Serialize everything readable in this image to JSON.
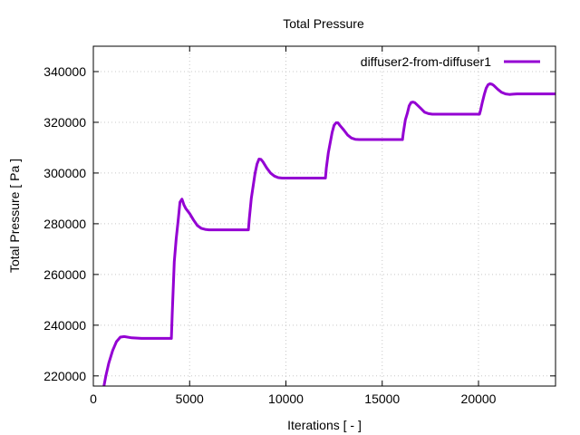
{
  "chart_data": {
    "type": "line",
    "title": "Total Pressure",
    "xlabel": "Iterations [ - ]",
    "ylabel": "Total Pressure [ Pa ]",
    "xlim": [
      0,
      24000
    ],
    "ylim": [
      216000,
      350000
    ],
    "x_ticks": [
      0,
      5000,
      10000,
      15000,
      20000
    ],
    "y_ticks": [
      220000,
      240000,
      260000,
      280000,
      300000,
      320000,
      340000
    ],
    "grid": true,
    "legend_position": "top-right",
    "series": [
      {
        "name": "diffuser2-from-diffuser1",
        "color": "#9400d3",
        "x": [
          550,
          650,
          800,
          1000,
          1200,
          1400,
          1600,
          2000,
          2500,
          3000,
          3500,
          4050,
          4100,
          4150,
          4200,
          4300,
          4400,
          4500,
          4600,
          4700,
          4800,
          5000,
          5200,
          5400,
          5600,
          5800,
          6000,
          6500,
          7000,
          7500,
          8050,
          8100,
          8200,
          8300,
          8400,
          8500,
          8600,
          8700,
          8800,
          9000,
          9200,
          9400,
          9600,
          9800,
          10000,
          10500,
          11000,
          11500,
          12050,
          12100,
          12200,
          12300,
          12400,
          12500,
          12600,
          12700,
          12800,
          13000,
          13200,
          13400,
          13600,
          13800,
          14000,
          14500,
          15000,
          15500,
          16050,
          16100,
          16200,
          16300,
          16400,
          16500,
          16600,
          16700,
          16800,
          17000,
          17200,
          17400,
          17600,
          17800,
          18000,
          18500,
          19000,
          19500,
          20050,
          20100,
          20200,
          20300,
          20400,
          20500,
          20600,
          20700,
          20800,
          21000,
          21200,
          21400,
          21600,
          21800,
          22000,
          22500,
          23000,
          23500,
          24000
        ],
        "values": [
          216000,
          220000,
          225000,
          230000,
          233500,
          235300,
          235500,
          235000,
          234800,
          234800,
          234800,
          234800,
          245000,
          255000,
          265000,
          274000,
          281000,
          288500,
          289700,
          287500,
          286000,
          284000,
          281500,
          279300,
          278200,
          277800,
          277600,
          277600,
          277600,
          277600,
          277600,
          282000,
          290000,
          295000,
          300000,
          303500,
          305500,
          305400,
          304500,
          302000,
          300000,
          298800,
          298200,
          298000,
          298000,
          298000,
          298000,
          298000,
          298000,
          302000,
          308000,
          312000,
          316000,
          318800,
          319800,
          319800,
          318800,
          317000,
          315000,
          313800,
          313300,
          313200,
          313200,
          313200,
          313200,
          313200,
          313200,
          316000,
          321000,
          323500,
          326500,
          327800,
          328000,
          327700,
          327000,
          325500,
          324000,
          323400,
          323200,
          323200,
          323200,
          323200,
          323200,
          323200,
          323200,
          324500,
          328000,
          331000,
          333500,
          334800,
          335200,
          335000,
          334500,
          333000,
          331800,
          331200,
          331000,
          331100,
          331200,
          331200,
          331200,
          331200,
          331200
        ]
      }
    ]
  }
}
